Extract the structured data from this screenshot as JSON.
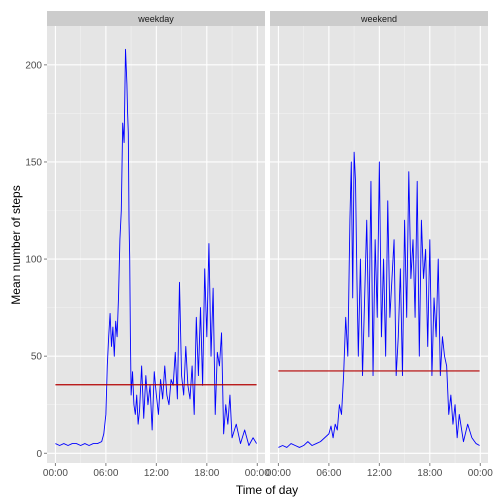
{
  "chart_data": {
    "type": "line",
    "xlabel": "Time of day",
    "ylabel": "Mean number of steps",
    "ylim": [
      -5,
      220
    ],
    "yticks": [
      0,
      50,
      100,
      150,
      200
    ],
    "xlim_minutes": [
      -60,
      1495
    ],
    "xticks": [
      "00:00",
      "06:00",
      "12:00",
      "18:00",
      "00:00"
    ],
    "grid": true,
    "colors": {
      "line": "#0000ff",
      "mean": "#b30000",
      "panel_bg": "#e5e5e5",
      "strip_bg": "#cccccc",
      "grid": "#ffffff"
    },
    "panels": [
      {
        "label": "weekday",
        "mean_value": 35.3,
        "x": [
          "00:00",
          "00:30",
          "01:00",
          "01:30",
          "02:00",
          "02:30",
          "03:00",
          "03:30",
          "04:00",
          "04:30",
          "05:00",
          "05:30",
          "05:45",
          "06:00",
          "06:10",
          "06:20",
          "06:30",
          "06:40",
          "06:50",
          "07:00",
          "07:10",
          "07:20",
          "07:30",
          "07:40",
          "07:50",
          "08:00",
          "08:10",
          "08:20",
          "08:30",
          "08:35",
          "08:40",
          "08:45",
          "08:50",
          "08:55",
          "09:00",
          "09:10",
          "09:20",
          "09:30",
          "09:40",
          "09:50",
          "10:00",
          "10:15",
          "10:30",
          "10:45",
          "11:00",
          "11:15",
          "11:30",
          "11:45",
          "12:00",
          "12:15",
          "12:30",
          "12:45",
          "13:00",
          "13:15",
          "13:30",
          "13:45",
          "14:00",
          "14:15",
          "14:30",
          "14:45",
          "15:00",
          "15:15",
          "15:30",
          "15:45",
          "16:00",
          "16:15",
          "16:30",
          "16:45",
          "17:00",
          "17:15",
          "17:30",
          "17:45",
          "18:00",
          "18:15",
          "18:30",
          "18:45",
          "19:00",
          "19:15",
          "19:30",
          "19:45",
          "20:00",
          "20:15",
          "20:30",
          "20:45",
          "21:00",
          "21:30",
          "22:00",
          "22:30",
          "23:00",
          "23:30",
          "23:55"
        ],
        "y": [
          5,
          4,
          5,
          4,
          5,
          5,
          4,
          5,
          4,
          5,
          5,
          6,
          10,
          20,
          45,
          60,
          72,
          55,
          65,
          50,
          68,
          60,
          80,
          110,
          125,
          170,
          160,
          208,
          190,
          175,
          165,
          120,
          100,
          60,
          30,
          42,
          25,
          20,
          30,
          15,
          22,
          45,
          18,
          40,
          25,
          35,
          12,
          42,
          30,
          20,
          38,
          28,
          45,
          30,
          25,
          38,
          35,
          52,
          28,
          88,
          40,
          30,
          55,
          35,
          28,
          45,
          20,
          70,
          40,
          75,
          35,
          95,
          60,
          108,
          50,
          85,
          20,
          52,
          45,
          62,
          10,
          25,
          15,
          30,
          8,
          15,
          5,
          12,
          4,
          8,
          5
        ]
      },
      {
        "label": "weekend",
        "mean_value": 42.4,
        "x": [
          "00:00",
          "00:30",
          "01:00",
          "01:30",
          "02:00",
          "02:30",
          "03:00",
          "03:30",
          "04:00",
          "04:30",
          "05:00",
          "05:30",
          "06:00",
          "06:15",
          "06:30",
          "06:45",
          "07:00",
          "07:15",
          "07:30",
          "07:45",
          "08:00",
          "08:15",
          "08:30",
          "08:40",
          "08:50",
          "09:00",
          "09:10",
          "09:20",
          "09:30",
          "09:45",
          "10:00",
          "10:15",
          "10:30",
          "10:45",
          "11:00",
          "11:15",
          "11:30",
          "11:45",
          "12:00",
          "12:15",
          "12:30",
          "12:45",
          "13:00",
          "13:15",
          "13:30",
          "13:45",
          "14:00",
          "14:15",
          "14:30",
          "14:45",
          "15:00",
          "15:15",
          "15:30",
          "15:45",
          "16:00",
          "16:15",
          "16:30",
          "16:45",
          "17:00",
          "17:15",
          "17:30",
          "17:45",
          "18:00",
          "18:15",
          "18:30",
          "18:45",
          "19:00",
          "19:15",
          "19:30",
          "19:45",
          "20:00",
          "20:15",
          "20:30",
          "20:45",
          "21:00",
          "21:15",
          "21:30",
          "22:00",
          "22:30",
          "23:00",
          "23:30",
          "23:55"
        ],
        "y": [
          3,
          4,
          3,
          5,
          4,
          3,
          4,
          6,
          4,
          5,
          6,
          8,
          10,
          14,
          8,
          15,
          12,
          25,
          20,
          40,
          70,
          50,
          120,
          150,
          80,
          155,
          140,
          90,
          50,
          100,
          40,
          80,
          120,
          60,
          140,
          40,
          110,
          70,
          150,
          60,
          100,
          50,
          130,
          70,
          90,
          110,
          40,
          60,
          95,
          40,
          120,
          70,
          145,
          90,
          110,
          70,
          140,
          50,
          120,
          90,
          105,
          55,
          110,
          40,
          80,
          60,
          100,
          40,
          60,
          50,
          45,
          20,
          30,
          15,
          25,
          8,
          20,
          6,
          15,
          8,
          5,
          4
        ]
      }
    ]
  }
}
